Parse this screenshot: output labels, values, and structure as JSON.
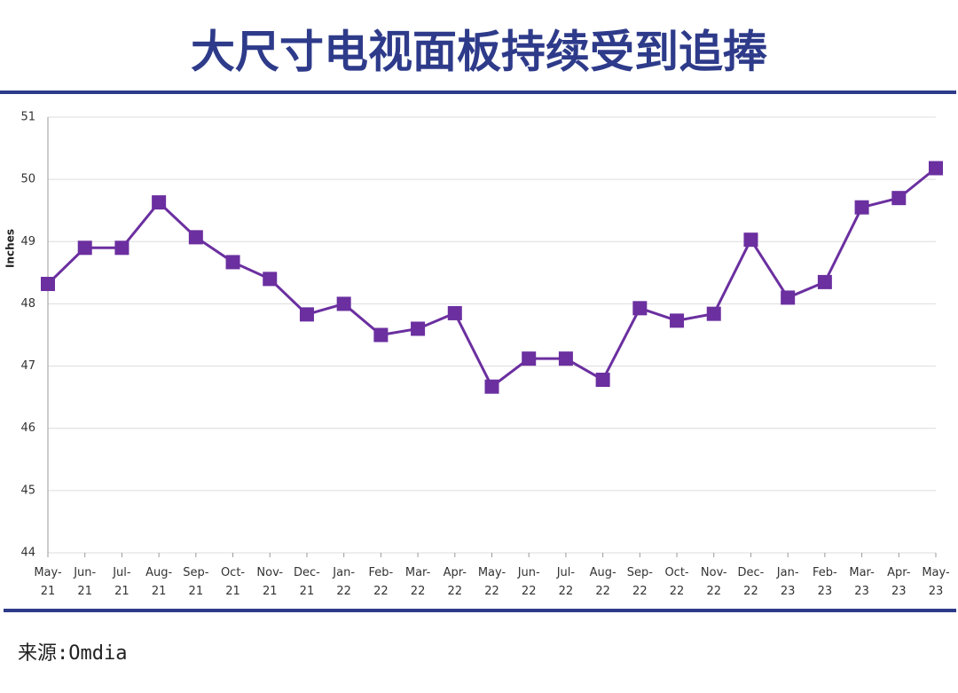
{
  "chart_data": {
    "type": "line",
    "title": "大尺寸电视面板持续受到追捧",
    "y_label": "Inches",
    "source": "来源:Omdia",
    "categories": [
      "May-21",
      "Jun-21",
      "Jul-21",
      "Aug-21",
      "Sep-21",
      "Oct-21",
      "Nov-21",
      "Dec-21",
      "Jan-22",
      "Feb-22",
      "Mar-22",
      "Apr-22",
      "May-22",
      "Jun-22",
      "Jul-22",
      "Aug-22",
      "Sep-22",
      "Oct-22",
      "Nov-22",
      "Dec-22",
      "Jan-23",
      "Feb-23",
      "Mar-23",
      "Apr-23",
      "May-23"
    ],
    "values": [
      48.32,
      48.9,
      48.9,
      49.63,
      49.07,
      48.67,
      48.4,
      47.83,
      48.0,
      47.5,
      47.6,
      47.85,
      46.67,
      47.12,
      47.12,
      46.78,
      47.93,
      47.73,
      47.84,
      49.03,
      48.1,
      48.35,
      49.55,
      49.7,
      50.18
    ],
    "color": "#6b2fa0",
    "ylim": [
      44,
      51
    ],
    "yticks": [
      44,
      45,
      46,
      47,
      48,
      49,
      50,
      51
    ],
    "grid": true
  }
}
